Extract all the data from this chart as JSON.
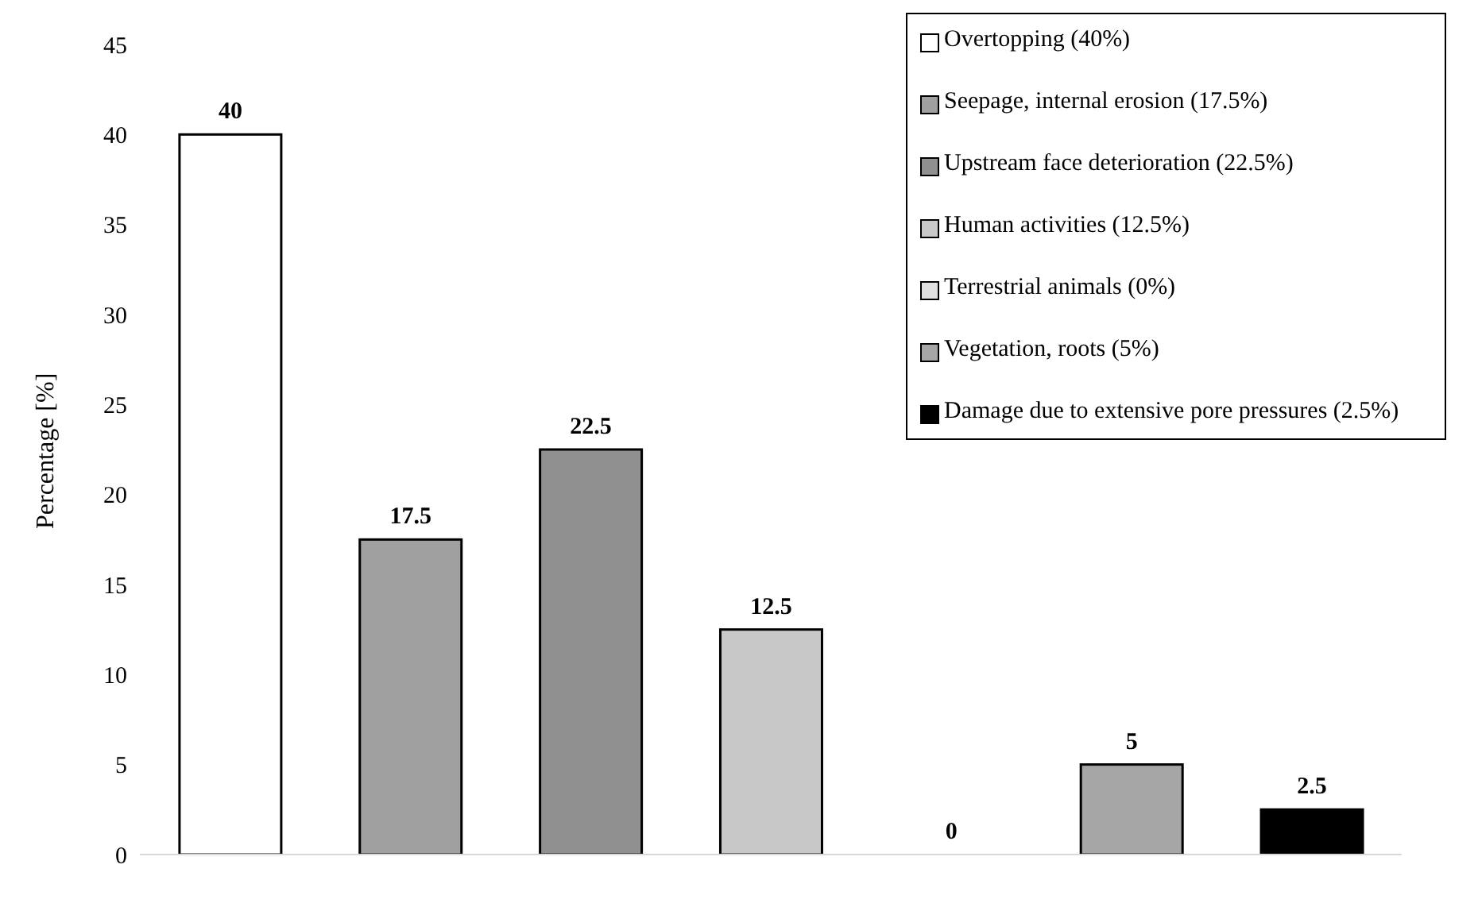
{
  "chart_data": {
    "type": "bar",
    "ylabel": "Percentage  [%]",
    "categories": [
      null,
      null,
      null,
      null,
      null,
      null,
      null
    ],
    "series": [
      {
        "name": "Overtopping (40%)",
        "color": "#ffffff",
        "values": [
          40,
          null,
          null,
          null,
          null,
          null,
          null
        ]
      },
      {
        "name": "Seepage, internal erosion (17.5%)",
        "color": "#a0a0a0",
        "values": [
          null,
          17.5,
          null,
          null,
          null,
          null,
          null
        ]
      },
      {
        "name": "Upstream face deterioration (22.5%)",
        "color": "#909090",
        "values": [
          null,
          null,
          22.5,
          null,
          null,
          null,
          null
        ]
      },
      {
        "name": "Human activities (12.5%)",
        "color": "#c8c8c8",
        "values": [
          null,
          null,
          null,
          12.5,
          null,
          null,
          null
        ]
      },
      {
        "name": "Terrestrial animals (0%)",
        "color": "#e0e0e0",
        "values": [
          null,
          null,
          null,
          null,
          0,
          null,
          null
        ]
      },
      {
        "name": "Vegetation, roots (5%)",
        "color": "#a6a6a6",
        "values": [
          null,
          null,
          null,
          null,
          null,
          5,
          null
        ]
      },
      {
        "name": "Damage due to extensive pore pressures (2.5%)",
        "color": "#000000",
        "values": [
          null,
          null,
          null,
          null,
          null,
          null,
          2.5
        ]
      }
    ],
    "stacked": true,
    "data_labels": true,
    "ylim": [
      0,
      45
    ],
    "yticks": [
      0,
      5,
      10,
      15,
      20,
      25,
      30,
      35,
      40,
      45
    ],
    "grid": false,
    "legend": "top right"
  }
}
